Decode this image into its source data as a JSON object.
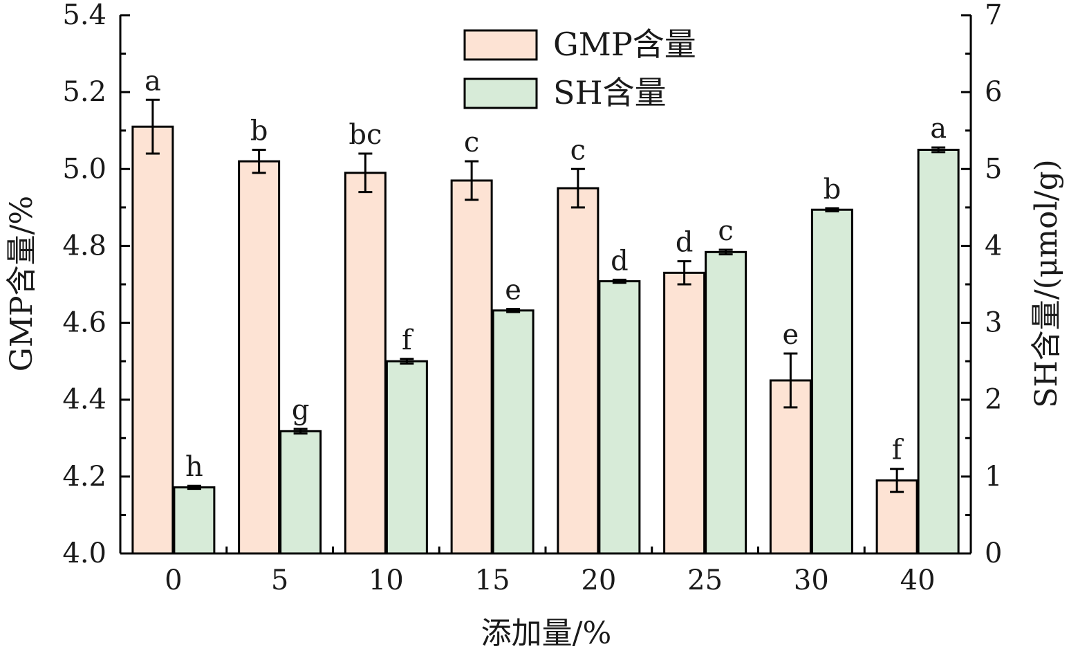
{
  "chart_data": {
    "type": "bar",
    "xlabel": "添加量/%",
    "ylabel_left": "GMP含量/%",
    "ylabel_right": "SH含量/(μmol/g)",
    "categories": [
      "0",
      "5",
      "10",
      "15",
      "20",
      "25",
      "30",
      "40"
    ],
    "ylim_left": [
      4.0,
      5.4
    ],
    "ylim_right": [
      0,
      7
    ],
    "yticks_left": [
      "4.0",
      "4.2",
      "4.4",
      "4.6",
      "4.8",
      "5.0",
      "5.2",
      "5.4"
    ],
    "yticks_right": [
      "0",
      "1",
      "2",
      "3",
      "4",
      "5",
      "6",
      "7"
    ],
    "legend_position": "top-center",
    "grid": false,
    "series": [
      {
        "name": "GMP含量",
        "axis": "left",
        "color": "#fde3d4",
        "values": [
          5.11,
          5.02,
          4.99,
          4.97,
          4.95,
          4.73,
          4.45,
          4.19
        ],
        "errors": [
          0.07,
          0.03,
          0.05,
          0.05,
          0.05,
          0.03,
          0.07,
          0.03
        ],
        "letters": [
          "a",
          "b",
          "bc",
          "c",
          "c",
          "d",
          "e",
          "f"
        ]
      },
      {
        "name": "SH含量",
        "axis": "right",
        "color": "#d7ebd8",
        "values": [
          0.86,
          1.59,
          2.5,
          3.16,
          3.54,
          3.92,
          4.47,
          5.25
        ],
        "errors": [
          0.02,
          0.03,
          0.03,
          0.02,
          0.02,
          0.03,
          0.02,
          0.03
        ],
        "letters": [
          "h",
          "g",
          "f",
          "e",
          "d",
          "c",
          "b",
          "a"
        ]
      }
    ]
  }
}
